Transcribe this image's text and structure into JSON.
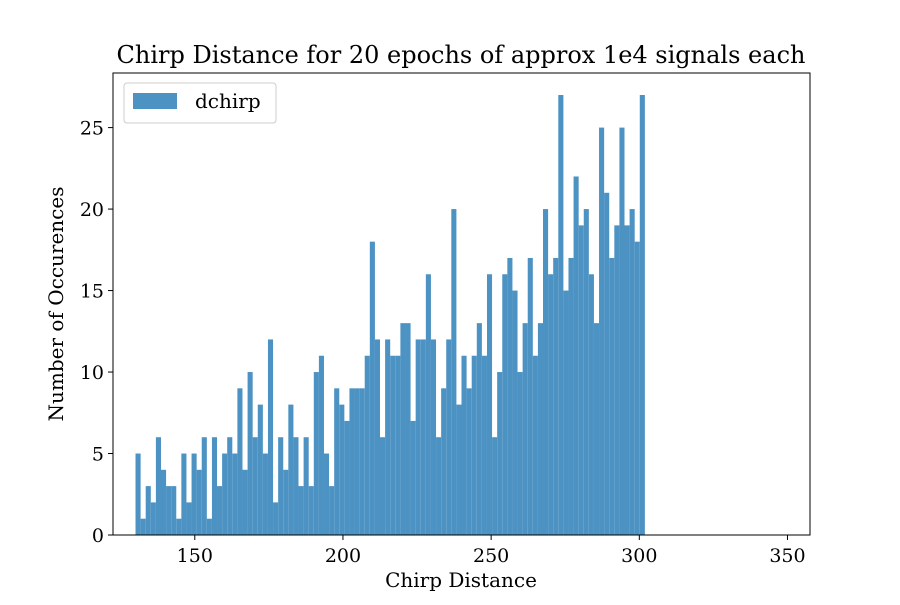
{
  "chart_data": {
    "type": "bar",
    "title": "Chirp Distance for 20 epochs of approx 1e4 signals each",
    "xlabel": "Chirp Distance",
    "ylabel": "Number of Occurences",
    "xlim": [
      122.4,
      357.6
    ],
    "ylim": [
      0,
      28.35
    ],
    "xticks": [
      150,
      200,
      250,
      300,
      350
    ],
    "yticks": [
      0,
      5,
      10,
      15,
      20,
      25
    ],
    "bin_start": 130,
    "bin_width": 1.7188,
    "bar_color": "#4c92c3",
    "grid": false,
    "legend_position": "top-left",
    "series": [
      {
        "name": "dchirp",
        "values": [
          5,
          1,
          3,
          2,
          6,
          4,
          3,
          3,
          1,
          5,
          2,
          5,
          4,
          6,
          1,
          6,
          3,
          5,
          6,
          5,
          9,
          4,
          10,
          6,
          8,
          5,
          12,
          2,
          6,
          4,
          8,
          6,
          3,
          6,
          3,
          10,
          11,
          5,
          3,
          9,
          8,
          7,
          9,
          9,
          9,
          11,
          18,
          12,
          6,
          12,
          11,
          11,
          13,
          13,
          7,
          12,
          12,
          16,
          12,
          6,
          9,
          12,
          20,
          8,
          11,
          9,
          11,
          13,
          11,
          16,
          6,
          10,
          16,
          17,
          15,
          10,
          13,
          17,
          11,
          13,
          20,
          16,
          17,
          27,
          15,
          17,
          22,
          19,
          20,
          16,
          13,
          25,
          21,
          17,
          19,
          25,
          19,
          20,
          18,
          27
        ]
      }
    ]
  }
}
